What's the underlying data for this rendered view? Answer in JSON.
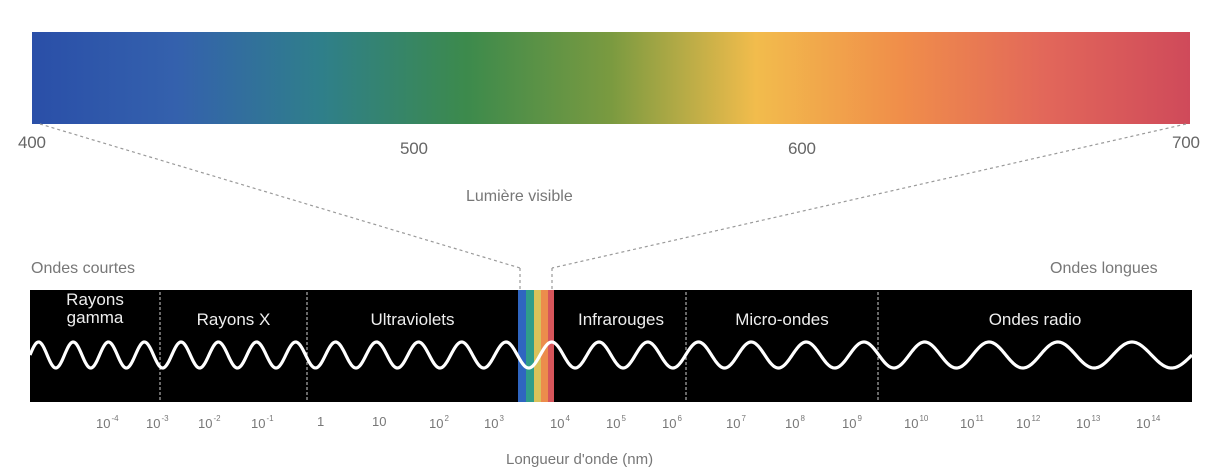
{
  "visible_spectrum": {
    "caption": "Lumière visible",
    "ticks": [
      {
        "value": 400,
        "label": "400"
      },
      {
        "value": 500,
        "label": "500"
      },
      {
        "value": 600,
        "label": "600"
      },
      {
        "value": 700,
        "label": "700"
      }
    ],
    "colors": [
      "#2a4fa8",
      "#3461ad",
      "#2f7f8a",
      "#3c8a4c",
      "#7a9a40",
      "#f2bc4c",
      "#f08e4a",
      "#e2675a",
      "#cf4a5a"
    ]
  },
  "em_spectrum": {
    "left_caption": "Ondes courtes",
    "right_caption": "Ondes longues",
    "axis_title": "Longueur d'onde (nm)",
    "bands": [
      {
        "line1": "Rayons",
        "line2": "gamma"
      },
      {
        "line1": "Rayons X",
        "line2": ""
      },
      {
        "line1": "Ultraviolets",
        "line2": ""
      },
      {
        "line1": "Infrarouges",
        "line2": ""
      },
      {
        "line1": "Micro-ondes",
        "line2": ""
      },
      {
        "line1": "Ondes radio",
        "line2": ""
      }
    ],
    "tick_labels": [
      {
        "base": "10",
        "exp": "-4"
      },
      {
        "base": "10",
        "exp": "-3"
      },
      {
        "base": "10",
        "exp": "-2"
      },
      {
        "base": "10",
        "exp": "-1"
      },
      {
        "base": "1",
        "exp": ""
      },
      {
        "base": "10",
        "exp": ""
      },
      {
        "base": "10",
        "exp": "2"
      },
      {
        "base": "10",
        "exp": "3"
      },
      {
        "base": "10",
        "exp": "4"
      },
      {
        "base": "10",
        "exp": "5"
      },
      {
        "base": "10",
        "exp": "6"
      },
      {
        "base": "10",
        "exp": "7"
      },
      {
        "base": "10",
        "exp": "8"
      },
      {
        "base": "10",
        "exp": "9"
      },
      {
        "base": "10",
        "exp": "10"
      },
      {
        "base": "10",
        "exp": "11"
      },
      {
        "base": "10",
        "exp": "12"
      },
      {
        "base": "10",
        "exp": "13"
      },
      {
        "base": "10",
        "exp": "14"
      }
    ],
    "colors": {
      "band_bg": "#000000",
      "wave": "#ffffff",
      "divider": "#cfcfcf",
      "guide": "#9a9a9a"
    }
  }
}
